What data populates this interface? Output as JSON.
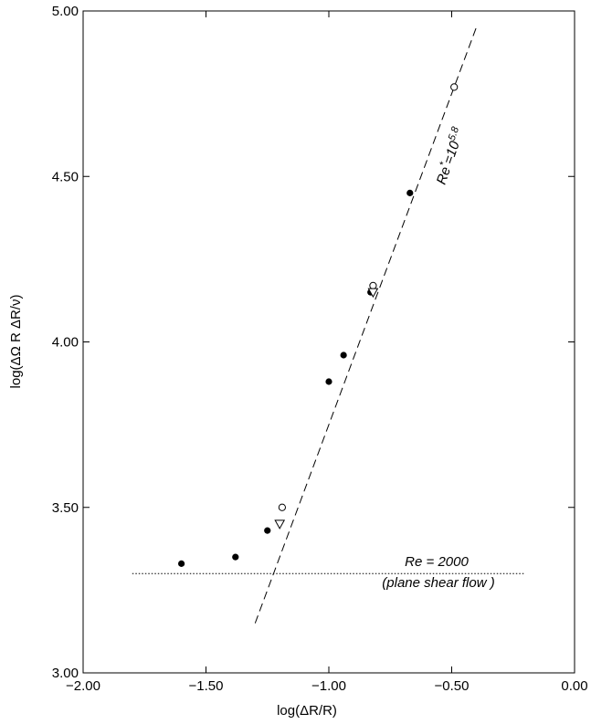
{
  "chart_data": {
    "type": "scatter",
    "title": "",
    "xlabel": "log(ΔR/R)",
    "ylabel": "log(ΔΩ R ΔR/ν)",
    "xlim": [
      -2.0,
      0.0
    ],
    "ylim": [
      3.0,
      5.0
    ],
    "xticks": [
      "−2.00",
      "−1.50",
      "−1.00",
      "−0.50",
      "0.00"
    ],
    "yticks": [
      "3.00",
      "3.50",
      "4.00",
      "4.50",
      "5.00"
    ],
    "grid": false,
    "series": [
      {
        "marker": "filled-circle",
        "points": [
          [
            -1.6,
            3.33
          ],
          [
            -1.38,
            3.35
          ],
          [
            -1.25,
            3.43
          ],
          [
            -1.0,
            3.88
          ],
          [
            -0.94,
            3.96
          ],
          [
            -0.83,
            4.15
          ],
          [
            -0.67,
            4.45
          ]
        ]
      },
      {
        "marker": "open-circle",
        "points": [
          [
            -1.19,
            3.5
          ],
          [
            -0.82,
            4.17
          ],
          [
            -0.49,
            4.77
          ]
        ]
      },
      {
        "marker": "open-triangle-down",
        "points": [
          [
            -1.2,
            3.45
          ],
          [
            -0.82,
            4.15
          ]
        ]
      }
    ],
    "lines": [
      {
        "style": "dashed",
        "points": [
          [
            -1.3,
            3.15
          ],
          [
            -0.4,
            4.95
          ]
        ]
      },
      {
        "style": "dotted",
        "points": [
          [
            -1.8,
            3.3
          ],
          [
            -0.2,
            3.3
          ]
        ]
      }
    ],
    "annotations": {
      "dashed_label": {
        "text": "Re",
        "sup": "*",
        "mid": "=10",
        "exp": "5.8"
      },
      "dotted_label_line1": "Re = 2000",
      "dotted_label_line2": "(plane shear flow )"
    }
  }
}
